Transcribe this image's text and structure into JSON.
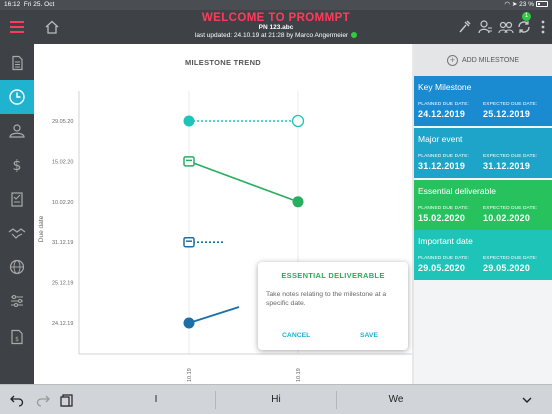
{
  "status_bar": {
    "time": "16:12",
    "date": "Fri 25. Oct",
    "battery": "23 %"
  },
  "header": {
    "title": "WELCOME TO PROMMPT",
    "project": "PN 123.abc",
    "last_updated": "last updated: 24.10.19 at 21:28 by Marco Angermeier",
    "notification_count": "1"
  },
  "nav": {
    "items": [
      "document-icon",
      "milestone-trend-icon",
      "team-icon",
      "dollar-icon",
      "checklist-icon",
      "handshake-icon",
      "globe-icon",
      "sliders-icon",
      "report-icon"
    ],
    "active_index": 1
  },
  "chart": {
    "title": "MILESTONE TREND",
    "ylabel": "Due date",
    "x_ticks": [
      "10.19",
      "10.19"
    ],
    "y_ticks": [
      "29.05.20",
      "15.02.20",
      "10.02.20",
      "31.12.19",
      "25.12.19",
      "24.12.19"
    ]
  },
  "chart_data": {
    "type": "line",
    "title": "MILESTONE TREND",
    "ylabel": "Due date",
    "x": [
      "10.19",
      "10.19"
    ],
    "series": [
      {
        "name": "Key Milestone",
        "color": "#1a6fa8",
        "values": [
          "24.12.19",
          "25.12.19"
        ]
      },
      {
        "name": "Major event",
        "color": "#1a6fa8",
        "values": [
          "31.12.19",
          "31.12.19"
        ]
      },
      {
        "name": "Essential deliverable",
        "color": "#27ae60",
        "values": [
          "15.02.20",
          "10.02.20"
        ]
      },
      {
        "name": "Important date",
        "color": "#1fc4b8",
        "values": [
          "29.05.20",
          "29.05.20"
        ]
      }
    ]
  },
  "popup": {
    "title": "ESSENTIAL DELIVERABLE",
    "placeholder": "Take notes relating to the milestone at a specific date.",
    "cancel": "CANCEL",
    "save": "SAVE"
  },
  "right_panel": {
    "add_label": "ADD MILESTONE",
    "planned_label": "PLANNED DUE DATE:",
    "expected_label": "EXPECTED DUE DATE:",
    "milestones": [
      {
        "name": "Key Milestone",
        "planned": "24.12.2019",
        "expected": "25.12.2019",
        "color": "#1a8bd0",
        "color2": "#1a8bd0"
      },
      {
        "name": "Major event",
        "planned": "31.12.2019",
        "expected": "31.12.2019",
        "color": "#1ea4c8",
        "color2": "#1ea4c8"
      },
      {
        "name": "Essential deliverable",
        "planned": "15.02.2020",
        "expected": "10.02.2020",
        "color": "#27c25e",
        "color2": "#27c25e"
      },
      {
        "name": "Important date",
        "planned": "29.05.2020",
        "expected": "29.05.2020",
        "color": "#1fc4b8",
        "color2": "#1fc4b8"
      }
    ]
  },
  "keyboard": {
    "suggestions": [
      "I",
      "Hi",
      "We"
    ]
  }
}
